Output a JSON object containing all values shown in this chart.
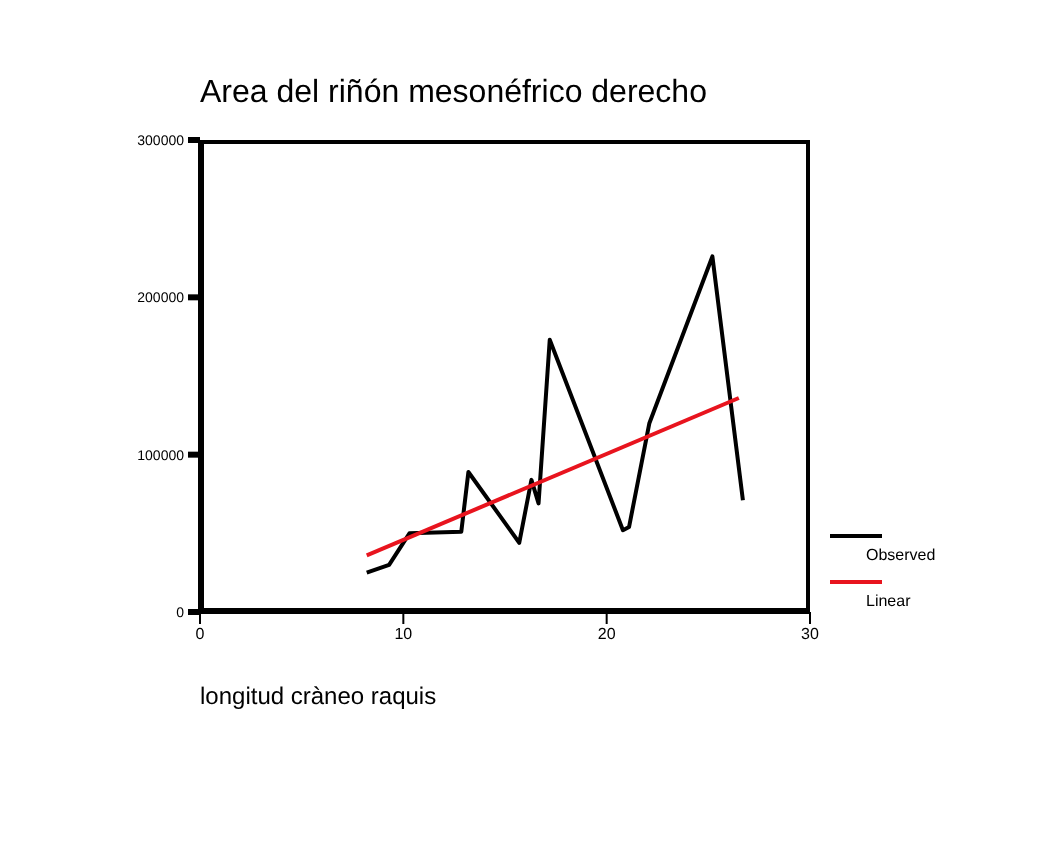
{
  "chart_data": {
    "type": "line",
    "title": "Area del riñón mesonéfrico derecho",
    "xlabel": "longitud cràneo raquis",
    "xlim": [
      0,
      30
    ],
    "xticks": [
      0,
      10,
      20,
      30
    ],
    "ylim": [
      0,
      300000
    ],
    "yticks": [
      0,
      100000,
      200000,
      300000
    ],
    "grid": false,
    "legend": "bottom right",
    "marker": "none",
    "series": [
      {
        "name": "Observed",
        "color": "#000000",
        "x": [
          8.2,
          9.3,
          10.3,
          12.85,
          13.2,
          15.7,
          16.3,
          16.65,
          17.2,
          20.8,
          21.1,
          22.1,
          25.2,
          26.7
        ],
        "values": [
          25000,
          30000,
          50000,
          51000,
          89000,
          44000,
          84000,
          69000,
          173000,
          52000,
          54000,
          120000,
          226000,
          71000
        ]
      },
      {
        "name": "Linear",
        "color": "#e8141e",
        "x": [
          8.2,
          26.5
        ],
        "values": [
          36000,
          136000
        ]
      }
    ]
  }
}
